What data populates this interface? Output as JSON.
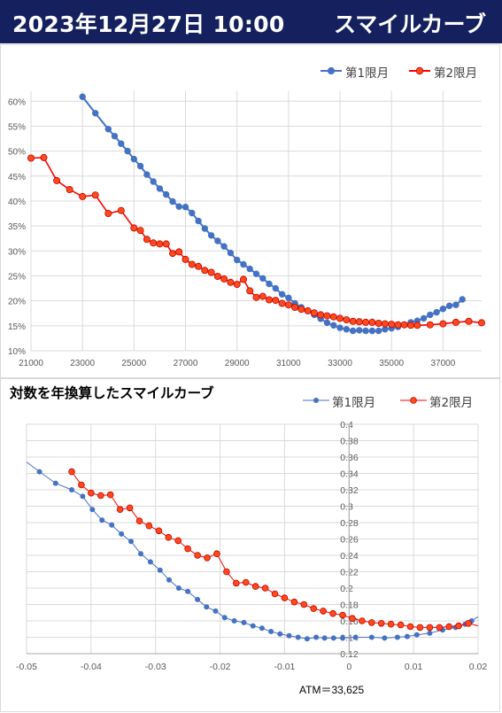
{
  "header": {
    "date": "2023年12月27日 10:00",
    "title": "スマイルカーブ"
  },
  "colors": {
    "series1": "#4472c4",
    "series2": "#ff0000",
    "series2_marker_fill": "#ff4a1c",
    "header_bg": "#14215e"
  },
  "chart_data": [
    {
      "type": "line",
      "title": "",
      "legend": {
        "position": "top-right",
        "entries": [
          "第1限月",
          "第2限月"
        ]
      },
      "grid": true,
      "xlim": [
        21000,
        38500
      ],
      "ylim": [
        0.1,
        0.62
      ],
      "x_ticks": [
        "21000",
        "23000",
        "25000",
        "27000",
        "29000",
        "31000",
        "33000",
        "35000",
        "37000"
      ],
      "y_ticks": [
        "10%",
        "15%",
        "20%",
        "25%",
        "30%",
        "35%",
        "40%",
        "45%",
        "50%",
        "55%",
        "60%"
      ],
      "series": [
        {
          "name": "第1限月",
          "x": [
            23000,
            23500,
            24000,
            24250,
            24500,
            24750,
            25000,
            25250,
            25500,
            25750,
            26000,
            26250,
            26500,
            26750,
            27000,
            27250,
            27500,
            27750,
            28000,
            28250,
            28500,
            28750,
            29000,
            29250,
            29500,
            29750,
            30000,
            30250,
            30500,
            30750,
            31000,
            31250,
            31500,
            31750,
            32000,
            32250,
            32500,
            32750,
            33000,
            33250,
            33500,
            33750,
            34000,
            34250,
            34500,
            34750,
            35000,
            35250,
            35500,
            35750,
            36000,
            36250,
            36500,
            36750,
            37000,
            37250,
            37500,
            37750
          ],
          "values": [
            0.609,
            0.576,
            0.544,
            0.53,
            0.515,
            0.5,
            0.484,
            0.47,
            0.453,
            0.439,
            0.425,
            0.413,
            0.399,
            0.389,
            0.388,
            0.376,
            0.36,
            0.345,
            0.331,
            0.32,
            0.309,
            0.296,
            0.282,
            0.273,
            0.264,
            0.254,
            0.245,
            0.234,
            0.225,
            0.213,
            0.206,
            0.195,
            0.187,
            0.18,
            0.172,
            0.164,
            0.156,
            0.151,
            0.146,
            0.143,
            0.14,
            0.141,
            0.14,
            0.14,
            0.14,
            0.143,
            0.145,
            0.148,
            0.152,
            0.157,
            0.16,
            0.165,
            0.172,
            0.177,
            0.184,
            0.19,
            0.192,
            0.203
          ]
        },
        {
          "name": "第2限月",
          "x": [
            21000,
            21500,
            22000,
            22500,
            23000,
            23500,
            24000,
            24500,
            25000,
            25250,
            25500,
            25750,
            26000,
            26250,
            26500,
            26750,
            27000,
            27250,
            27500,
            27750,
            28000,
            28250,
            28500,
            28750,
            29000,
            29250,
            29500,
            29750,
            30000,
            30250,
            30500,
            30750,
            31000,
            31250,
            31500,
            31750,
            32000,
            32250,
            32500,
            32750,
            33000,
            33250,
            33500,
            33750,
            34000,
            34250,
            34500,
            34750,
            35000,
            35250,
            35500,
            35750,
            36000,
            36500,
            37000,
            37500,
            38000,
            38500
          ],
          "values": [
            0.486,
            0.487,
            0.441,
            0.423,
            0.409,
            0.412,
            0.375,
            0.381,
            0.346,
            0.341,
            0.323,
            0.316,
            0.314,
            0.314,
            0.295,
            0.298,
            0.283,
            0.273,
            0.269,
            0.261,
            0.257,
            0.249,
            0.244,
            0.237,
            0.233,
            0.243,
            0.22,
            0.207,
            0.209,
            0.202,
            0.201,
            0.195,
            0.192,
            0.187,
            0.183,
            0.18,
            0.176,
            0.172,
            0.17,
            0.168,
            0.165,
            0.162,
            0.159,
            0.158,
            0.157,
            0.157,
            0.155,
            0.154,
            0.153,
            0.152,
            0.152,
            0.151,
            0.151,
            0.152,
            0.154,
            0.157,
            0.159,
            0.156
          ]
        }
      ]
    },
    {
      "type": "line",
      "title": "対数を年換算したスマイルカーブ",
      "legend": {
        "position": "top-right",
        "entries": [
          "第1限月",
          "第2限月"
        ]
      },
      "grid": true,
      "xlim": [
        -0.05,
        0.02
      ],
      "ylim": [
        0.12,
        0.4
      ],
      "x_ticks": [
        "-0.05",
        "-0.04",
        "-0.03",
        "-0.02",
        "-0.01",
        "0",
        "0.01",
        "0.02"
      ],
      "y_ticks": [
        "0.12",
        "0.14",
        "0.16",
        "0.18",
        "0.2",
        "0.22",
        "0.24",
        "0.26",
        "0.28",
        "0.3",
        "0.32",
        "0.34",
        "0.36",
        "0.38",
        "0.4"
      ],
      "annotation": "ATM＝33,625",
      "series": [
        {
          "name": "第1限月",
          "x": [
            -0.048,
            -0.0455,
            -0.043,
            -0.0413,
            -0.0398,
            -0.0383,
            -0.0368,
            -0.0353,
            -0.0338,
            -0.0323,
            -0.0308,
            -0.0293,
            -0.0279,
            -0.0264,
            -0.025,
            -0.0235,
            -0.0221,
            -0.0207,
            -0.0193,
            -0.0178,
            -0.0163,
            -0.0149,
            -0.0135,
            -0.0121,
            -0.0107,
            -0.0093,
            -0.0079,
            -0.0065,
            -0.0051,
            -0.0038,
            -0.0024,
            -0.001,
            0.001,
            0.0035,
            0.0055,
            0.0075,
            0.009,
            0.0105,
            0.0125,
            0.0145,
            0.0165,
            0.018,
            0.019
          ],
          "values": [
            0.342,
            0.328,
            0.32,
            0.312,
            0.296,
            0.283,
            0.277,
            0.266,
            0.257,
            0.242,
            0.232,
            0.222,
            0.21,
            0.2,
            0.196,
            0.186,
            0.177,
            0.172,
            0.164,
            0.16,
            0.158,
            0.154,
            0.151,
            0.147,
            0.144,
            0.142,
            0.14,
            0.138,
            0.14,
            0.139,
            0.139,
            0.139,
            0.14,
            0.14,
            0.139,
            0.14,
            0.141,
            0.143,
            0.145,
            0.149,
            0.152,
            0.156,
            0.16
          ]
        },
        {
          "name": "第2限月",
          "x": [
            -0.043,
            -0.0415,
            -0.04,
            -0.0385,
            -0.037,
            -0.0355,
            -0.034,
            -0.0325,
            -0.031,
            -0.0295,
            -0.028,
            -0.0265,
            -0.025,
            -0.0235,
            -0.022,
            -0.0205,
            -0.019,
            -0.0175,
            -0.016,
            -0.0145,
            -0.013,
            -0.0115,
            -0.01,
            -0.0085,
            -0.007,
            -0.0055,
            -0.004,
            -0.0025,
            -0.001,
            0.0005,
            0.002,
            0.0035,
            0.005,
            0.0065,
            0.008,
            0.0095,
            0.011,
            0.0125,
            0.014,
            0.0155,
            0.017,
            0.0185
          ],
          "values": [
            0.342,
            0.326,
            0.316,
            0.313,
            0.314,
            0.296,
            0.298,
            0.282,
            0.276,
            0.27,
            0.262,
            0.258,
            0.248,
            0.24,
            0.237,
            0.242,
            0.22,
            0.206,
            0.207,
            0.202,
            0.2,
            0.193,
            0.188,
            0.183,
            0.18,
            0.175,
            0.172,
            0.169,
            0.167,
            0.163,
            0.16,
            0.158,
            0.157,
            0.156,
            0.155,
            0.153,
            0.152,
            0.152,
            0.152,
            0.153,
            0.154,
            0.157
          ]
        }
      ]
    }
  ]
}
